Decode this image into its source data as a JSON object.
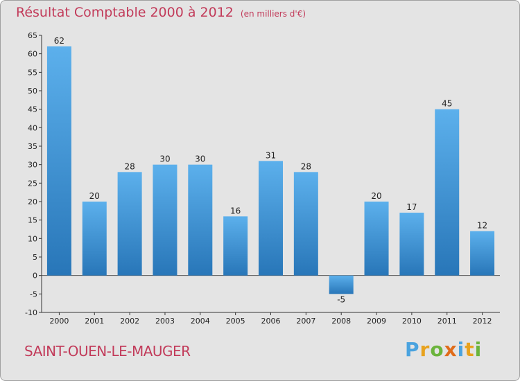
{
  "chart_data": {
    "type": "bar",
    "title": "Résultat Comptable 2000 à 2012",
    "subtitle": "(en milliers d'€)",
    "categories": [
      "2000",
      "2001",
      "2002",
      "2003",
      "2004",
      "2005",
      "2006",
      "2007",
      "2008",
      "2009",
      "2010",
      "2011",
      "2012"
    ],
    "values": [
      62,
      20,
      28,
      30,
      30,
      16,
      31,
      28,
      -5,
      20,
      17,
      45,
      12
    ],
    "ylim": [
      -10,
      65
    ],
    "yticks": [
      -10,
      -5,
      0,
      5,
      10,
      15,
      20,
      25,
      30,
      35,
      40,
      45,
      50,
      55,
      60,
      65
    ],
    "xlabel": "",
    "ylabel": "",
    "grid": false,
    "bar_color": "#3d94d8"
  },
  "commune": "SAINT-OUEN-LE-MAUGER",
  "logo": {
    "letters": [
      "P",
      "r",
      "o",
      "x",
      "i",
      "t",
      "i"
    ],
    "colors": [
      "#4aa3df",
      "#e8a21d",
      "#6bb43c",
      "#e06c1a",
      "#4aa3df",
      "#e8a21d",
      "#6bb43c"
    ]
  }
}
